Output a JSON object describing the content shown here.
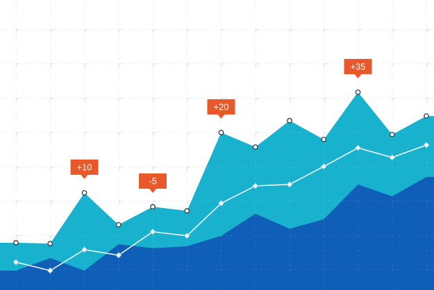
{
  "chart_data": {
    "type": "area",
    "categories": [
      null,
      null,
      null,
      null,
      null,
      null,
      null,
      null,
      null,
      null,
      null,
      null,
      null
    ],
    "ylim": [
      0,
      100
    ],
    "series": [
      {
        "name": null,
        "color": "#18b2cf",
        "values": [
          16.3,
          16.0,
          33.5,
          22.5,
          28.7,
          27.3,
          54.3,
          49.3,
          58.4,
          51.9,
          68.2,
          53.6,
          60.0
        ]
      },
      {
        "name": null,
        "color": "#ffffff",
        "line": true,
        "values": [
          9.6,
          6.7,
          13.9,
          12.0,
          20.1,
          18.7,
          29.9,
          35.9,
          36.4,
          42.6,
          49.0,
          45.7,
          50.0
        ]
      },
      {
        "name": null,
        "color": "#0f5fb9",
        "values": [
          6.7,
          11.0,
          6.7,
          15.8,
          14.4,
          15.1,
          18.7,
          26.3,
          21.1,
          24.4,
          36.4,
          32.3,
          39.0
        ]
      }
    ],
    "annotations": [
      {
        "at": 2,
        "text": "+10",
        "color": "#e8582a"
      },
      {
        "at": 4,
        "text": "-5",
        "color": "#e8582a"
      },
      {
        "at": 6,
        "text": "+20",
        "color": "#e8582a"
      },
      {
        "at": 10,
        "text": "+35",
        "color": "#e8582a"
      }
    ]
  }
}
